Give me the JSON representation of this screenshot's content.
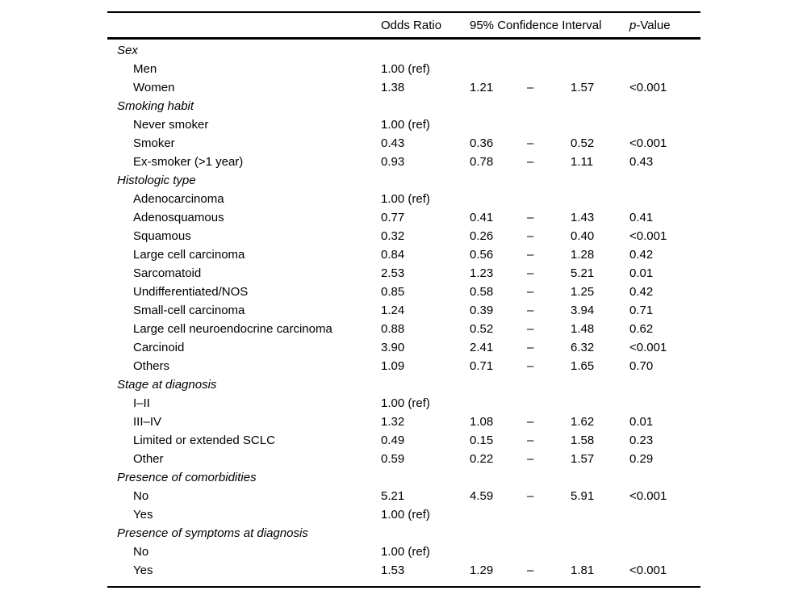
{
  "page": {
    "background_color": "#ffffff",
    "text_color": "#000000"
  },
  "table": {
    "headers": {
      "label": "",
      "odds_ratio": "Odds Ratio",
      "confidence_interval": "95% Confidence Interval",
      "p_value_italic": "p",
      "p_value_rest": "-Value"
    },
    "ci_dash": "–",
    "reference_value": "1.00 (ref)",
    "sections": [
      {
        "title": "Sex",
        "rows": [
          {
            "label": "Men",
            "odds_ratio": "1.00 (ref)",
            "ci_low": "",
            "ci_high": "",
            "p_value": ""
          },
          {
            "label": "Women",
            "odds_ratio": "1.38",
            "ci_low": "1.21",
            "ci_high": "1.57",
            "p_value": "<0.001"
          }
        ]
      },
      {
        "title": "Smoking habit",
        "rows": [
          {
            "label": "Never smoker",
            "odds_ratio": "1.00 (ref)",
            "ci_low": "",
            "ci_high": "",
            "p_value": ""
          },
          {
            "label": "Smoker",
            "odds_ratio": "0.43",
            "ci_low": "0.36",
            "ci_high": "0.52",
            "p_value": "<0.001"
          },
          {
            "label": "Ex-smoker (>1 year)",
            "odds_ratio": "0.93",
            "ci_low": "0.78",
            "ci_high": "1.11",
            "p_value": "0.43"
          }
        ]
      },
      {
        "title": "Histologic type",
        "rows": [
          {
            "label": "Adenocarcinoma",
            "odds_ratio": "1.00 (ref)",
            "ci_low": "",
            "ci_high": "",
            "p_value": ""
          },
          {
            "label": "Adenosquamous",
            "odds_ratio": "0.77",
            "ci_low": "0.41",
            "ci_high": "1.43",
            "p_value": "0.41"
          },
          {
            "label": "Squamous",
            "odds_ratio": "0.32",
            "ci_low": "0.26",
            "ci_high": "0.40",
            "p_value": "<0.001"
          },
          {
            "label": "Large cell carcinoma",
            "odds_ratio": "0.84",
            "ci_low": "0.56",
            "ci_high": "1.28",
            "p_value": "0.42"
          },
          {
            "label": "Sarcomatoid",
            "odds_ratio": "2.53",
            "ci_low": "1.23",
            "ci_high": "5.21",
            "p_value": "0.01"
          },
          {
            "label": "Undifferentiated/NOS",
            "odds_ratio": "0.85",
            "ci_low": "0.58",
            "ci_high": "1.25",
            "p_value": "0.42"
          },
          {
            "label": "Small-cell carcinoma",
            "odds_ratio": "1.24",
            "ci_low": "0.39",
            "ci_high": "3.94",
            "p_value": "0.71"
          },
          {
            "label": "Large cell neuroendocrine carcinoma",
            "odds_ratio": "0.88",
            "ci_low": "0.52",
            "ci_high": "1.48",
            "p_value": "0.62"
          },
          {
            "label": "Carcinoid",
            "odds_ratio": "3.90",
            "ci_low": "2.41",
            "ci_high": "6.32",
            "p_value": "<0.001"
          },
          {
            "label": "Others",
            "odds_ratio": "1.09",
            "ci_low": "0.71",
            "ci_high": "1.65",
            "p_value": "0.70"
          }
        ]
      },
      {
        "title": "Stage at diagnosis",
        "rows": [
          {
            "label": "I–II",
            "odds_ratio": "1.00 (ref)",
            "ci_low": "",
            "ci_high": "",
            "p_value": ""
          },
          {
            "label": "III–IV",
            "odds_ratio": "1.32",
            "ci_low": "1.08",
            "ci_high": "1.62",
            "p_value": "0.01"
          },
          {
            "label": "Limited or extended SCLC",
            "odds_ratio": "0.49",
            "ci_low": "0.15",
            "ci_high": "1.58",
            "p_value": "0.23"
          },
          {
            "label": "Other",
            "odds_ratio": "0.59",
            "ci_low": "0.22",
            "ci_high": "1.57",
            "p_value": "0.29"
          }
        ]
      },
      {
        "title": "Presence of comorbidities",
        "rows": [
          {
            "label": "No",
            "odds_ratio": "5.21",
            "ci_low": "4.59",
            "ci_high": "5.91",
            "p_value": "<0.001"
          },
          {
            "label": "Yes",
            "odds_ratio": "1.00 (ref)",
            "ci_low": "",
            "ci_high": "",
            "p_value": ""
          }
        ]
      },
      {
        "title": "Presence of symptoms at diagnosis",
        "rows": [
          {
            "label": "No",
            "odds_ratio": "1.00 (ref)",
            "ci_low": "",
            "ci_high": "",
            "p_value": ""
          },
          {
            "label": "Yes",
            "odds_ratio": "1.53",
            "ci_low": "1.29",
            "ci_high": "1.81",
            "p_value": "<0.001"
          }
        ]
      }
    ]
  }
}
